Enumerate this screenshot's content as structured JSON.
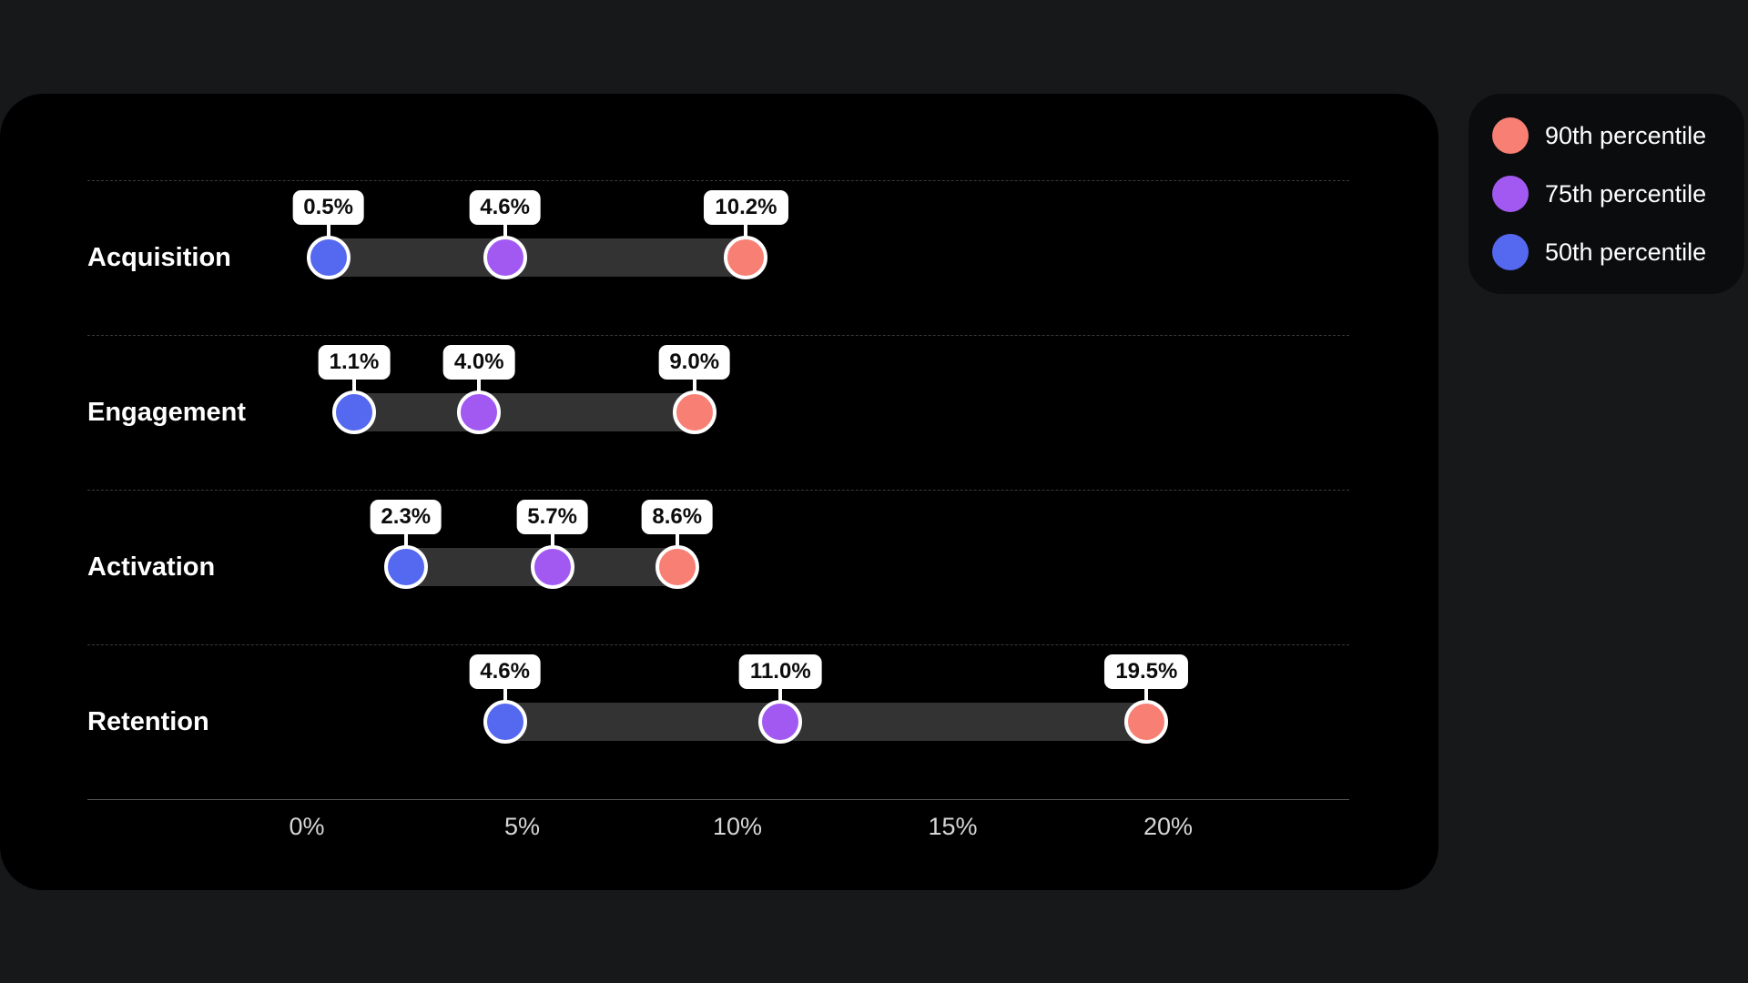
{
  "page": {
    "background": "#16181a"
  },
  "panel": {
    "background": "#000000"
  },
  "legend": {
    "background": "#0b0c0e",
    "position": "top-right-outside",
    "items": [
      {
        "label": "90th percentile",
        "series": "p90"
      },
      {
        "label": "75th percentile",
        "series": "p75"
      },
      {
        "label": "50th percentile",
        "series": "p50"
      }
    ]
  },
  "chart_data": {
    "type": "dumbbell",
    "title": "",
    "categories": [
      "Acquisition",
      "Engagement",
      "Activation",
      "Retention"
    ],
    "series": [
      {
        "key": "p50",
        "name": "50th percentile",
        "color": "#5468f0",
        "values": [
          0.5,
          1.1,
          2.3,
          4.6
        ]
      },
      {
        "key": "p75",
        "name": "75th percentile",
        "color": "#a259f2",
        "values": [
          4.6,
          4.0,
          5.7,
          11.0
        ]
      },
      {
        "key": "p90",
        "name": "90th percentile",
        "color": "#f87f73",
        "values": [
          10.2,
          9.0,
          8.6,
          19.5
        ]
      }
    ],
    "value_labels": [
      [
        "0.5%",
        "4.6%",
        "10.2%"
      ],
      [
        "1.1%",
        "4.0%",
        "9.0%"
      ],
      [
        "2.3%",
        "5.7%",
        "8.6%"
      ],
      [
        "4.6%",
        "11.0%",
        "19.5%"
      ]
    ],
    "x_ticks": [
      {
        "value": 0,
        "label": "0%"
      },
      {
        "value": 5,
        "label": "5%"
      },
      {
        "value": 10,
        "label": "10%"
      },
      {
        "value": 15,
        "label": "15%"
      },
      {
        "value": 20,
        "label": "20%"
      }
    ],
    "xlim": [
      0,
      24.2
    ],
    "bar_color": "#333333",
    "grid": "horizontal-row-separators",
    "value_label_style": "white-pill-above-marker"
  }
}
